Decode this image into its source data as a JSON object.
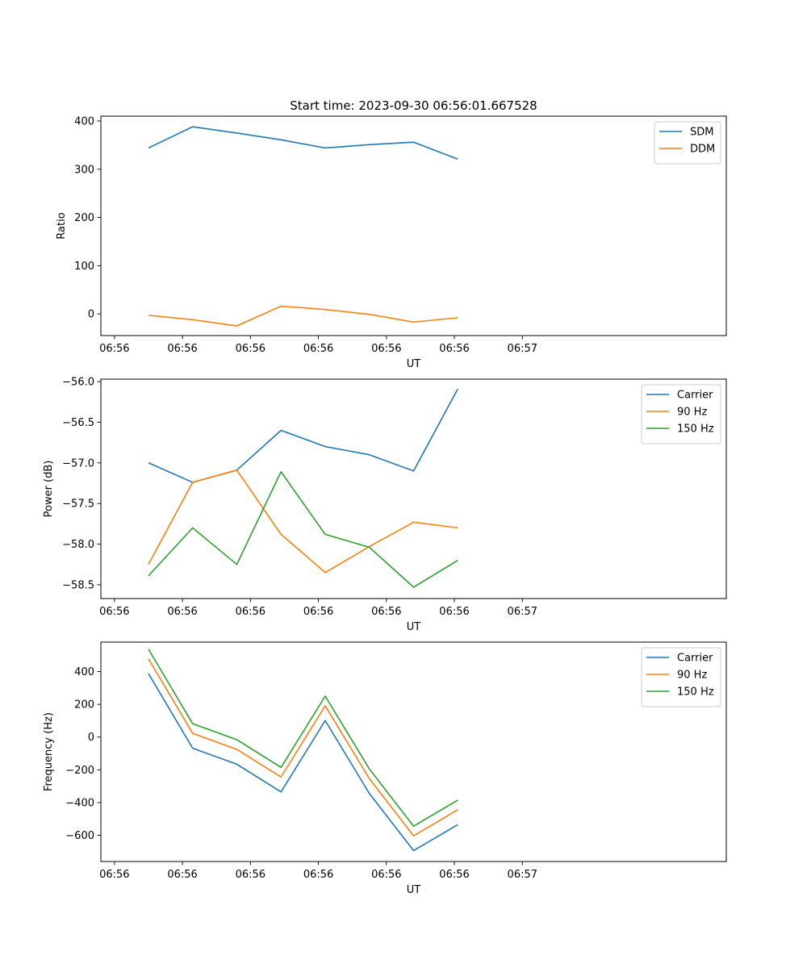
{
  "figure": {
    "title": "Start time: 2023-09-30 06:56:01.667528"
  },
  "colors": {
    "blue": "#1f77b4",
    "orange": "#ff7f0e",
    "green": "#2ca02c"
  },
  "chart_data": [
    {
      "type": "line",
      "title": "Start time: 2023-09-30 06:56:01.667528",
      "xlabel": "UT",
      "ylabel": "Ratio",
      "xlim": [
        -0.2,
        9.0
      ],
      "x_ticks": [
        0,
        1,
        2,
        3,
        4,
        5,
        6
      ],
      "x_tick_labels": [
        "06:56",
        "06:56",
        "06:56",
        "06:56",
        "06:56",
        "06:56",
        "06:57"
      ],
      "ylim": [
        -45,
        410
      ],
      "y_ticks": [
        0,
        100,
        200,
        300,
        400
      ],
      "y_tick_labels": [
        "0",
        "100",
        "200",
        "300",
        "400"
      ],
      "legend_position": "top-right",
      "x": [
        0.5,
        1.15,
        1.8,
        2.45,
        3.1,
        3.75,
        4.4,
        5.05
      ],
      "series": [
        {
          "name": "SDM",
          "color": "#1f77b4",
          "values": [
            344,
            388,
            375,
            361,
            344,
            351,
            356,
            321
          ]
        },
        {
          "name": "DDM",
          "color": "#ff7f0e",
          "values": [
            -3,
            -12,
            -25,
            16,
            9,
            -1,
            -17,
            -8
          ]
        }
      ]
    },
    {
      "type": "line",
      "title": "",
      "xlabel": "UT",
      "ylabel": "Power (dB)",
      "xlim": [
        -0.2,
        9.0
      ],
      "x_ticks": [
        0,
        1,
        2,
        3,
        4,
        5,
        6
      ],
      "x_tick_labels": [
        "06:56",
        "06:56",
        "06:56",
        "06:56",
        "06:56",
        "06:56",
        "06:57"
      ],
      "ylim": [
        -58.67,
        -55.97
      ],
      "y_ticks": [
        -58.5,
        -58.0,
        -57.5,
        -57.0,
        -56.5,
        -56.0
      ],
      "y_tick_labels": [
        "−58.5",
        "−58.0",
        "−57.5",
        "−57.0",
        "−56.5",
        "−56.0"
      ],
      "legend_position": "top-right",
      "x": [
        0.5,
        1.15,
        1.8,
        2.45,
        3.1,
        3.75,
        4.4,
        5.05
      ],
      "series": [
        {
          "name": "Carrier",
          "color": "#1f77b4",
          "values": [
            -57.0,
            -57.24,
            -57.09,
            -56.6,
            -56.8,
            -56.9,
            -57.1,
            -56.09
          ]
        },
        {
          "name": "90 Hz",
          "color": "#ff7f0e",
          "values": [
            -58.25,
            -57.24,
            -57.09,
            -57.88,
            -58.35,
            -58.03,
            -57.73,
            -57.8
          ]
        },
        {
          "name": "150 Hz",
          "color": "#2ca02c",
          "values": [
            -58.39,
            -57.8,
            -58.25,
            -57.11,
            -57.88,
            -58.04,
            -58.53,
            -58.2
          ]
        }
      ]
    },
    {
      "type": "line",
      "title": "",
      "xlabel": "UT",
      "ylabel": "Frequency (Hz)",
      "xlim": [
        -0.2,
        9.0
      ],
      "x_ticks": [
        0,
        1,
        2,
        3,
        4,
        5,
        6
      ],
      "x_tick_labels": [
        "06:56",
        "06:56",
        "06:56",
        "06:56",
        "06:56",
        "06:56",
        "06:57"
      ],
      "ylim": [
        -760,
        580
      ],
      "y_ticks": [
        -600,
        -400,
        -200,
        0,
        200,
        400
      ],
      "y_tick_labels": [
        "−600",
        "−400",
        "−200",
        "0",
        "200",
        "400"
      ],
      "legend_position": "top-right",
      "x": [
        0.5,
        1.15,
        1.8,
        2.45,
        3.1,
        3.75,
        4.4,
        5.05
      ],
      "series": [
        {
          "name": "Carrier",
          "color": "#1f77b4",
          "values": [
            388,
            -68,
            -166,
            -335,
            101,
            -345,
            -693,
            -535
          ]
        },
        {
          "name": "90 Hz",
          "color": "#ff7f0e",
          "values": [
            478,
            23,
            -75,
            -244,
            191,
            -254,
            -603,
            -444
          ]
        },
        {
          "name": "150 Hz",
          "color": "#2ca02c",
          "values": [
            537,
            82,
            -16,
            -185,
            250,
            -195,
            -544,
            -385
          ]
        }
      ]
    }
  ]
}
